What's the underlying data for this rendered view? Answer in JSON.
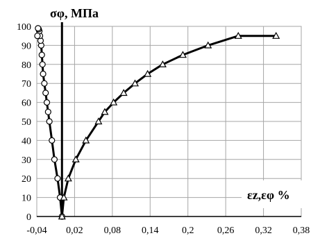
{
  "chart_data": {
    "type": "line",
    "title": "",
    "ylabel": "σφ, МПа",
    "xlabel": "εz,εφ %",
    "xlim": [
      -0.04,
      0.38
    ],
    "ylim": [
      0,
      100
    ],
    "x_ticks": [
      "-0,04",
      "0,02",
      "0,08",
      "0,14",
      "0,2",
      "0,26",
      "0,32",
      "0,38"
    ],
    "y_ticks": [
      "0",
      "10",
      "20",
      "30",
      "40",
      "50",
      "60",
      "70",
      "80",
      "90",
      "100"
    ],
    "grid": true,
    "series": [
      {
        "marker": "circle",
        "color": "#000000",
        "x": [
          0.0,
          -0.003,
          -0.007,
          -0.012,
          -0.016,
          -0.02,
          -0.022,
          -0.024,
          -0.026,
          -0.028,
          -0.03,
          -0.031,
          -0.032,
          -0.033,
          -0.034,
          -0.035,
          -0.036,
          -0.037,
          -0.038,
          -0.039
        ],
        "y": [
          0,
          10,
          20,
          30,
          40,
          50,
          55,
          60,
          65,
          70,
          75,
          80,
          85,
          90,
          92.5,
          95,
          97.5,
          98.5,
          99,
          95
        ]
      },
      {
        "marker": "triangle",
        "color": "#000000",
        "x": [
          0.0,
          0.003,
          0.01,
          0.022,
          0.038,
          0.058,
          0.068,
          0.082,
          0.098,
          0.116,
          0.136,
          0.16,
          0.192,
          0.232,
          0.28,
          0.34
        ],
        "y": [
          0,
          10,
          20,
          30,
          40,
          50,
          55,
          60,
          65,
          70,
          75,
          80,
          85,
          90,
          95,
          95
        ]
      }
    ]
  }
}
